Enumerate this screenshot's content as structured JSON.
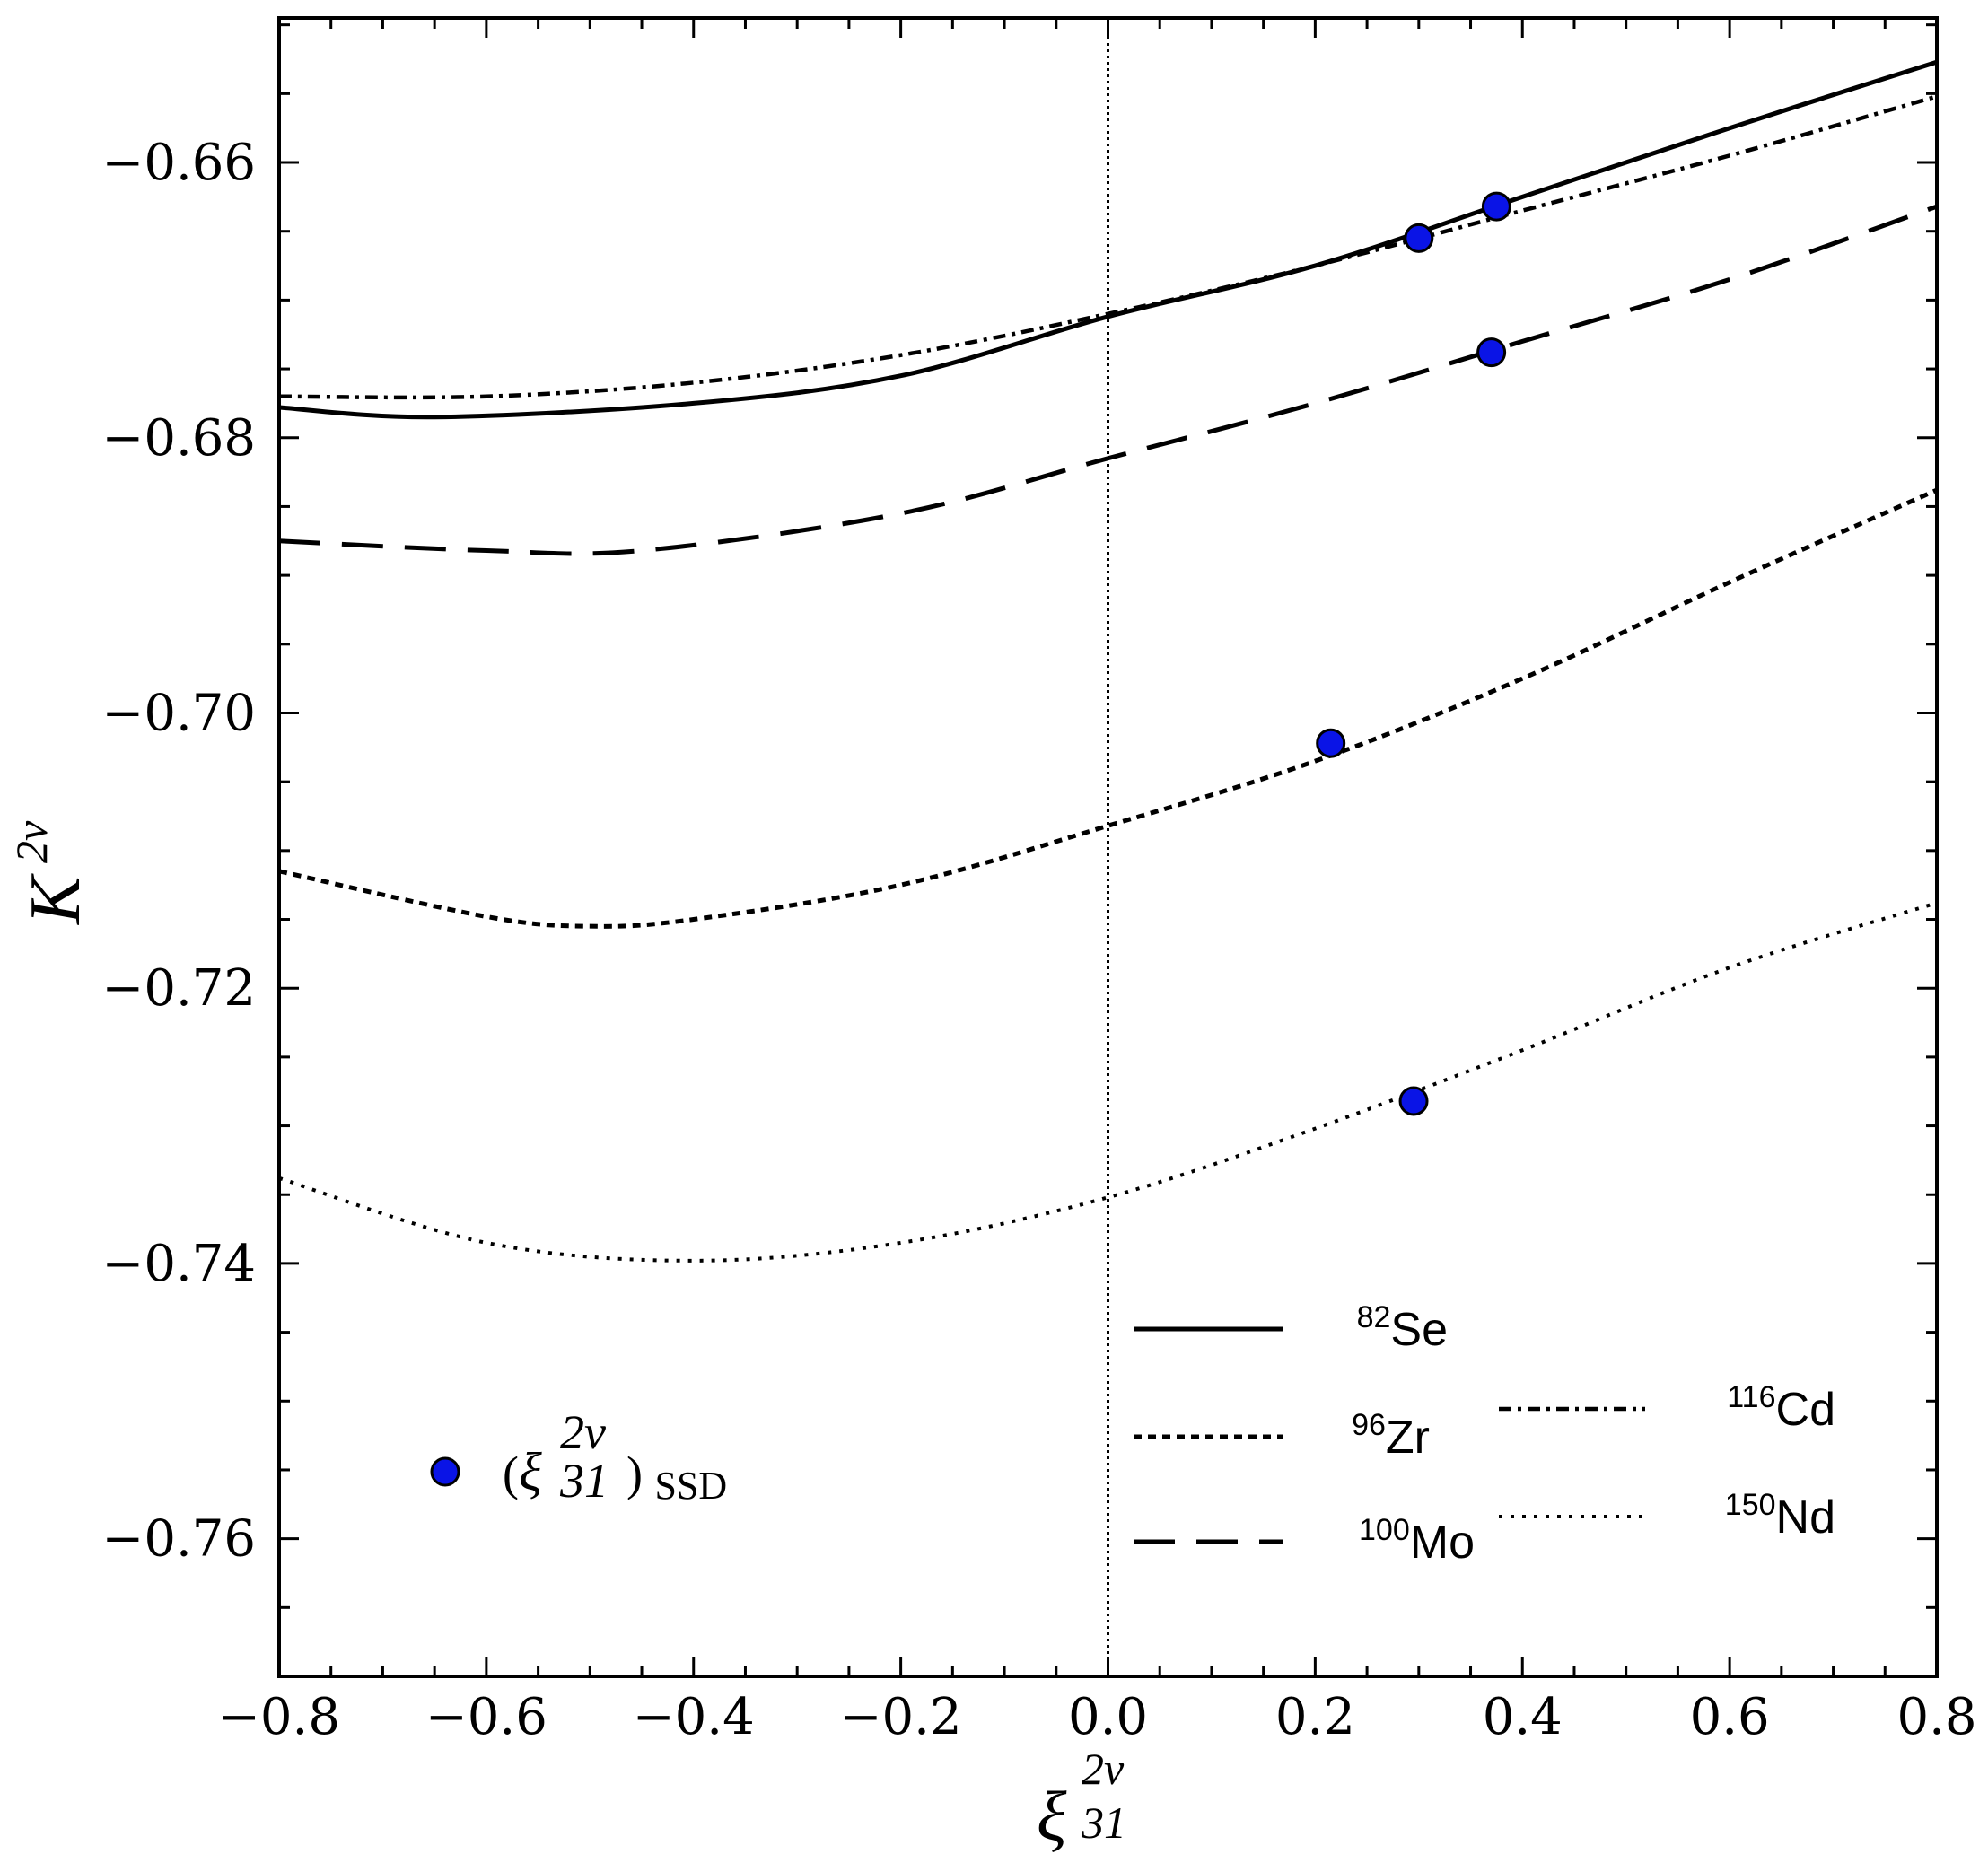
{
  "chart_data": {
    "type": "line",
    "xlabel": {
      "base": "ξ",
      "sup": "2ν",
      "sub": "31"
    },
    "ylabel": {
      "base": "K",
      "sup": "2ν"
    },
    "xlim": [
      -0.8,
      0.8
    ],
    "ylim": [
      -0.77,
      -0.6495
    ],
    "x_ticks": [
      -0.8,
      -0.6,
      -0.4,
      -0.2,
      0.0,
      0.2,
      0.4,
      0.6,
      0.8
    ],
    "x_tick_labels": [
      "−0.8",
      "−0.6",
      "−0.4",
      "−0.2",
      "0.0",
      "0.2",
      "0.4",
      "0.6",
      "0.8"
    ],
    "y_ticks": [
      -0.66,
      -0.68,
      -0.7,
      -0.72,
      -0.74,
      -0.76
    ],
    "y_tick_labels": [
      "−0.66",
      "−0.68",
      "−0.70",
      "−0.72",
      "−0.74",
      "−0.76"
    ],
    "reference_line": {
      "x": 0.0,
      "style": "dotted"
    },
    "series": [
      {
        "name": "82Se",
        "mass": "82",
        "element": "Se",
        "style": "solid",
        "x": [
          -0.8,
          -0.65,
          -0.4,
          -0.2,
          0.0,
          0.2,
          0.4,
          0.6,
          0.8
        ],
        "y": [
          -0.6778,
          -0.6785,
          -0.6775,
          -0.6755,
          -0.6712,
          -0.6675,
          -0.6625,
          -0.6575,
          -0.6527
        ]
      },
      {
        "name": "96Zr",
        "mass": "96",
        "element": "Zr",
        "style": "short-dash",
        "x": [
          -0.8,
          -0.6,
          -0.5,
          -0.4,
          -0.2,
          0.0,
          0.2,
          0.4,
          0.6,
          0.8
        ],
        "y": [
          -0.7115,
          -0.7148,
          -0.7155,
          -0.715,
          -0.7125,
          -0.7082,
          -0.7035,
          -0.6975,
          -0.6905,
          -0.6838
        ]
      },
      {
        "name": "100Mo",
        "mass": "100",
        "element": "Mo",
        "style": "long-dash",
        "x": [
          -0.8,
          -0.6,
          -0.45,
          -0.2,
          0.0,
          0.2,
          0.4,
          0.6,
          0.8
        ],
        "y": [
          -0.6875,
          -0.6882,
          -0.6882,
          -0.6855,
          -0.6815,
          -0.6775,
          -0.673,
          -0.6685,
          -0.6632
        ]
      },
      {
        "name": "116Cd",
        "mass": "116",
        "element": "Cd",
        "style": "dash-dot",
        "x": [
          -0.8,
          -0.6,
          -0.4,
          -0.2,
          0.0,
          0.2,
          0.4,
          0.6,
          0.8
        ],
        "y": [
          -0.677,
          -0.677,
          -0.676,
          -0.674,
          -0.671,
          -0.6675,
          -0.6635,
          -0.6595,
          -0.6552
        ]
      },
      {
        "name": "150Nd",
        "mass": "150",
        "element": "Nd",
        "style": "dotted",
        "x": [
          -0.8,
          -0.6,
          -0.4,
          -0.2,
          0.0,
          0.2,
          0.4,
          0.6,
          0.8
        ],
        "y": [
          -0.7338,
          -0.7385,
          -0.7398,
          -0.7385,
          -0.7352,
          -0.7302,
          -0.7245,
          -0.7185,
          -0.7138
        ]
      }
    ],
    "markers": {
      "label": {
        "paren_open": "(",
        "base": "ξ",
        "sup": "2ν",
        "sub": "31",
        "paren_close": ")",
        "suffix": "SSD"
      },
      "color": "#0a14e6",
      "points": [
        {
          "series": "82Se",
          "x": 0.3,
          "y": -0.6655
        },
        {
          "series": "116Cd",
          "x": 0.375,
          "y": -0.6632
        },
        {
          "series": "100Mo",
          "x": 0.37,
          "y": -0.6738
        },
        {
          "series": "96Zr",
          "x": 0.215,
          "y": -0.7022
        },
        {
          "series": "150Nd",
          "x": 0.295,
          "y": -0.7282
        }
      ]
    },
    "legend": {
      "placement": "bottom-right",
      "entries": [
        "82Se",
        "96Zr",
        "116Cd",
        "100Mo",
        "150Nd"
      ]
    }
  }
}
